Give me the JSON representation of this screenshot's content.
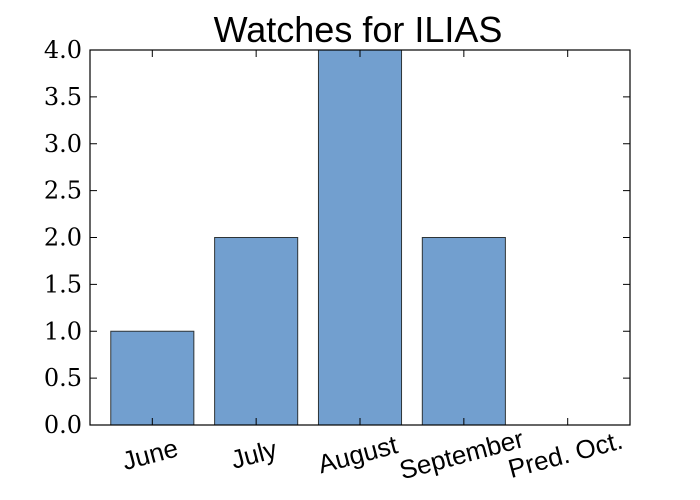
{
  "chart_data": {
    "type": "bar",
    "title": "Watches for ILIAS",
    "xlabel": "",
    "ylabel": "",
    "categories": [
      "June",
      "July",
      "August",
      "September",
      "Pred. Oct."
    ],
    "values": [
      1,
      2,
      4,
      2,
      0
    ],
    "ylim": [
      0,
      4.0
    ],
    "yticks": [
      "0.0",
      "0.5",
      "1.0",
      "1.5",
      "2.0",
      "2.5",
      "3.0",
      "3.5",
      "4.0"
    ],
    "grid": false,
    "bar_color": "#729fcf",
    "bar_edge_color": "#2e3436"
  }
}
